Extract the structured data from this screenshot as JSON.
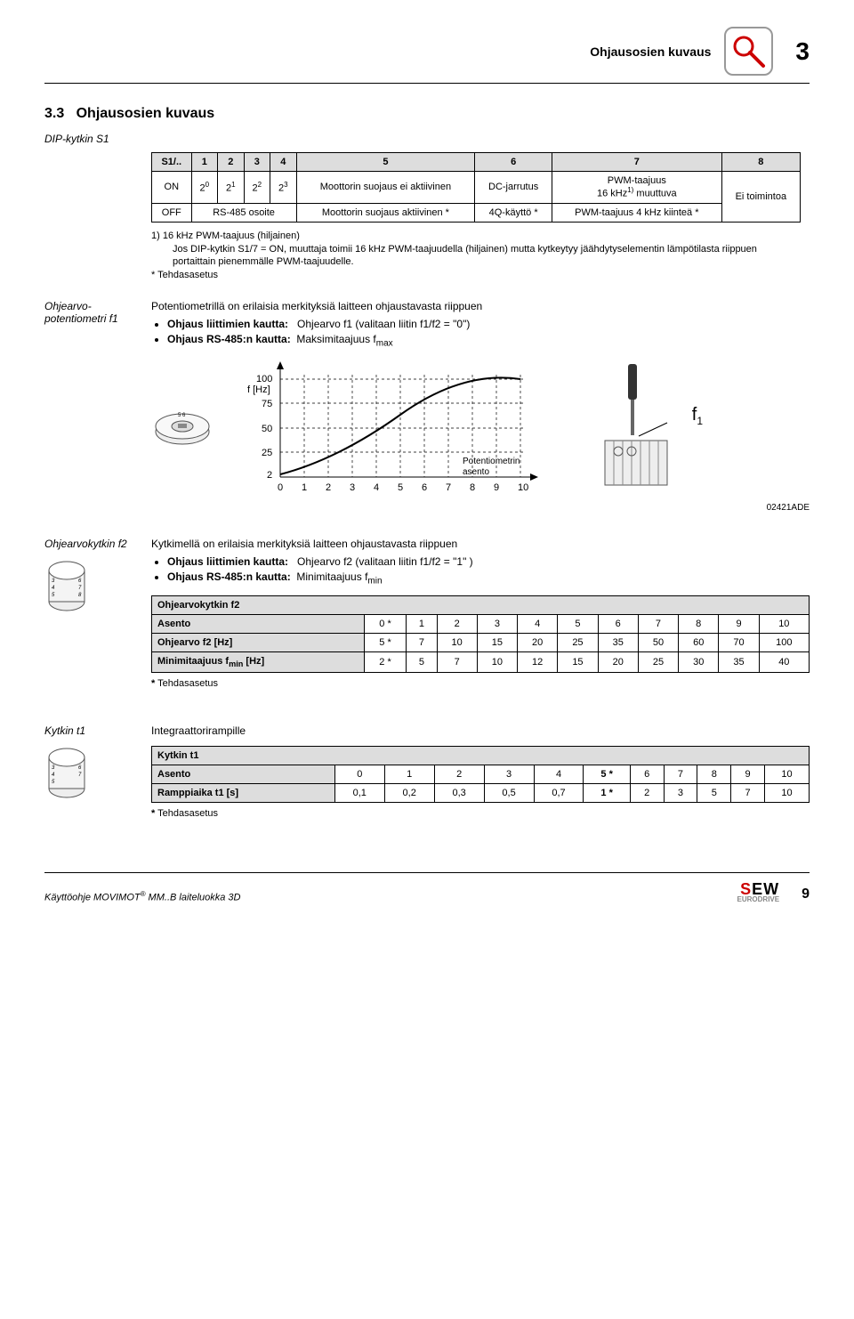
{
  "header": {
    "title": "Ohjausosien kuvaus",
    "page_num": "3"
  },
  "section": {
    "num": "3.3",
    "title": "Ohjausosien kuvaus"
  },
  "dip": {
    "subhead": "DIP-kytkin S1",
    "row0": [
      "S1/..",
      "1",
      "2",
      "3",
      "4",
      "5",
      "6",
      "7",
      "8"
    ],
    "on_label": "ON",
    "off_label": "OFF",
    "addr": [
      "2",
      "2",
      "2",
      "2"
    ],
    "sup": [
      "0",
      "1",
      "2",
      "3"
    ],
    "col5_on": "Moottorin suojaus ei aktiivinen",
    "col6_on": "DC-jarrutus",
    "col7_on_a": "PWM-taajuus",
    "col7_on_b": "16 kHz",
    "col7_on_c": " muuttuva",
    "col7_on_sup": "1)",
    "col8": "Ei toimintoa",
    "off_addr": "RS-485 osoite",
    "col5_off": "Moottorin suojaus aktiivinen *",
    "col6_off": "4Q-käyttö *",
    "col7_off": "PWM-taajuus 4 kHz kiinteä *",
    "note1_lead": "1)  16 kHz PWM-taajuus (hiljainen)",
    "note1_body": "Jos  DIP-kytkin S1/7 = ON, muuttaja toimii 16 kHz PWM-taajuudella (hiljainen) mutta kytkeytyy jäähdytyselementin lämpötilasta riippuen portaittain pienemmälle PWM-taajuudelle.",
    "note2": "*    Tehdasasetus"
  },
  "pot": {
    "label": "Ohjearvo-potentiometri f1",
    "intro": "Potentiometrillä on erilaisia merkityksiä laitteen ohjaustavasta riippuen",
    "b1a": "Ohjaus liittimien kautta:",
    "b1b": "Ohjearvo f1 (valitaan  liitin  f1/f2 = \"0\")",
    "b2a": "Ohjaus  RS-485:n kautta:",
    "b2b": "Maksimitaajuus  f",
    "b2sub": "max",
    "chart": {
      "ylabel": "f [Hz]",
      "yticks": [
        100,
        75,
        50,
        25,
        2
      ],
      "xticks": [
        0,
        1,
        2,
        3,
        4,
        5,
        6,
        7,
        8,
        9,
        10
      ],
      "legend": "Potentiometrin asento",
      "f_label": "f",
      "f_sub": "1",
      "code": "02421ADE"
    }
  },
  "f2": {
    "label": "Ohjearvokytkin  f2",
    "intro": "Kytkimellä on erilaisia merkityksiä laitteen ohjaustavasta riippuen",
    "b1a": "Ohjaus liittimien kautta:",
    "b1b": "Ohjearvo  f2 (valitaan liitin f1/f2 = \"1\" )",
    "b2a": "Ohjaus  RS-485:n kautta:",
    "b2b": "Minimitaajuus  f",
    "b2sub": "min",
    "table_title": "Ohjearvokytkin  f2",
    "row_asento": [
      "Asento",
      "0 *",
      "1",
      "2",
      "3",
      "4",
      "5",
      "6",
      "7",
      "8",
      "9",
      "10"
    ],
    "row_ohjearvo": [
      "Ohjearvo f2 [Hz]",
      "5 *",
      "7",
      "10",
      "15",
      "20",
      "25",
      "35",
      "50",
      "60",
      "70",
      "100"
    ],
    "row_min_label": "Minimitaajuus f",
    "row_min_sub": "min",
    "row_min_unit": " [Hz]",
    "row_min": [
      "2 *",
      "5",
      "7",
      "10",
      "12",
      "15",
      "20",
      "25",
      "30",
      "35",
      "40"
    ],
    "note": "* Tehdasasetus"
  },
  "t1": {
    "label": "Kytkin  t1",
    "intro": "Integraattorirampille",
    "table_title": "Kytkin  t1",
    "row_asento": [
      "Asento",
      "0",
      "1",
      "2",
      "3",
      "4",
      "5 *",
      "6",
      "7",
      "8",
      "9",
      "10"
    ],
    "row_ramp": [
      "Ramppiaika  t1 [s]",
      "0,1",
      "0,2",
      "0,3",
      "0,5",
      "0,7",
      "1 *",
      "2",
      "3",
      "5",
      "7",
      "10"
    ],
    "note": "* Tehdasasetus"
  },
  "footer": {
    "left_a": "Käyttöohje MOVIMOT",
    "left_sup": "®",
    "left_b": " MM..B laiteluokka 3D",
    "page": "9"
  }
}
